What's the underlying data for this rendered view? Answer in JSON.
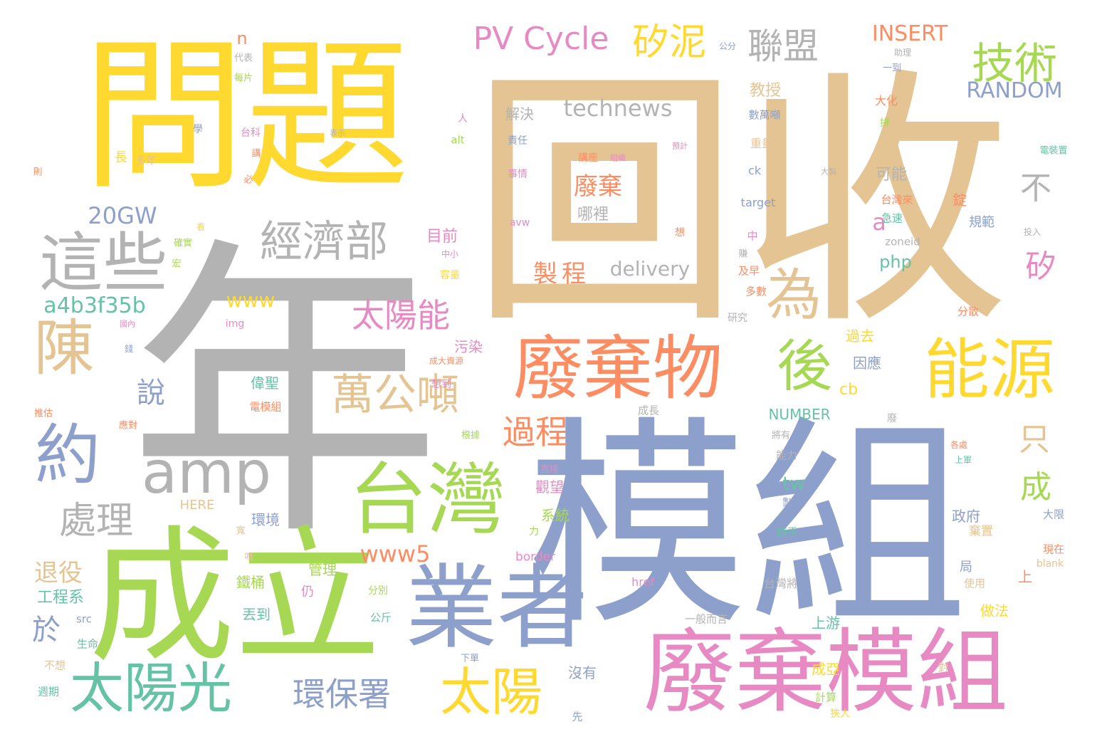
{
  "colors": {
    "tan": "#e5c494",
    "gray": "#b3b3b3",
    "blue": "#8da0cb",
    "green": "#a6d854",
    "yellow": "#ffd92f",
    "orange": "#fc8d62",
    "pink": "#e78ac3",
    "teal": "#66c2a5"
  },
  "words": [
    {
      "text": "回收",
      "color": "tan"
    },
    {
      "text": "年",
      "color": "gray"
    },
    {
      "text": "模組",
      "color": "blue"
    },
    {
      "text": "問題",
      "color": "yellow"
    },
    {
      "text": "成立",
      "color": "green"
    },
    {
      "text": "廢棄模組",
      "color": "pink"
    },
    {
      "text": "業者",
      "color": "blue"
    },
    {
      "text": "台灣",
      "color": "green"
    },
    {
      "text": "廢棄物",
      "color": "orange"
    },
    {
      "text": "能源",
      "color": "yellow"
    },
    {
      "text": "太陽光",
      "color": "teal"
    },
    {
      "text": "太陽",
      "color": "yellow"
    },
    {
      "text": "這些",
      "color": "gray"
    },
    {
      "text": "約",
      "color": "blue"
    },
    {
      "text": "陳",
      "color": "tan"
    },
    {
      "text": "amp",
      "color": "gray"
    },
    {
      "text": "經濟部",
      "color": "gray"
    },
    {
      "text": "萬公噸",
      "color": "tan"
    },
    {
      "text": "技術",
      "color": "green"
    },
    {
      "text": "後",
      "color": "green"
    },
    {
      "text": "為",
      "color": "tan"
    },
    {
      "text": "聯盟",
      "color": "gray"
    },
    {
      "text": "矽泥",
      "color": "yellow"
    },
    {
      "text": "PV Cycle",
      "color": "pink"
    },
    {
      "text": "太陽能",
      "color": "pink"
    },
    {
      "text": "處理",
      "color": "gray"
    },
    {
      "text": "環保署",
      "color": "blue"
    },
    {
      "text": "過程",
      "color": "orange"
    },
    {
      "text": "technews",
      "color": "gray"
    },
    {
      "text": "INSERT",
      "color": "orange"
    },
    {
      "text": "RANDOM",
      "color": "blue"
    },
    {
      "text": "20GW",
      "color": "blue"
    },
    {
      "text": "a4b3f35b",
      "color": "teal"
    },
    {
      "text": "www5",
      "color": "orange"
    },
    {
      "text": "說",
      "color": "blue"
    },
    {
      "text": "於",
      "color": "blue"
    },
    {
      "text": "退役",
      "color": "tan"
    },
    {
      "text": "製程",
      "color": "orange"
    },
    {
      "text": "delivery",
      "color": "gray"
    },
    {
      "text": "www",
      "color": "yellow"
    },
    {
      "text": "不",
      "color": "gray"
    },
    {
      "text": "a",
      "color": "pink"
    },
    {
      "text": "只",
      "color": "tan"
    },
    {
      "text": "成",
      "color": "green"
    },
    {
      "text": "矽",
      "color": "pink"
    },
    {
      "text": "廢棄",
      "color": "orange"
    },
    {
      "text": "哪裡",
      "color": "gray"
    },
    {
      "text": "解決",
      "color": "gray"
    },
    {
      "text": "php",
      "color": "teal"
    },
    {
      "text": "tw",
      "color": "teal"
    },
    {
      "text": "cb",
      "color": "yellow"
    },
    {
      "text": "可能",
      "color": "gray"
    },
    {
      "text": "教授",
      "color": "tan"
    },
    {
      "text": "目前",
      "color": "pink"
    },
    {
      "text": "污染",
      "color": "pink"
    },
    {
      "text": "偉聖",
      "color": "teal"
    },
    {
      "text": "觀望",
      "color": "pink"
    },
    {
      "text": "系統",
      "color": "green"
    },
    {
      "text": "環境",
      "color": "blue"
    },
    {
      "text": "管理",
      "color": "green"
    },
    {
      "text": "工程系",
      "color": "teal"
    },
    {
      "text": "鐵桶",
      "color": "green"
    },
    {
      "text": "丟到",
      "color": "teal"
    },
    {
      "text": "沒有",
      "color": "blue"
    },
    {
      "text": "成亞",
      "color": "yellow"
    },
    {
      "text": "上游",
      "color": "teal"
    },
    {
      "text": "政府",
      "color": "blue"
    },
    {
      "text": "因應",
      "color": "blue"
    },
    {
      "text": "過去",
      "color": "yellow"
    },
    {
      "text": "做法",
      "color": "yellow"
    },
    {
      "text": "NUMBER",
      "color": "teal"
    },
    {
      "text": "HERE",
      "color": "tan"
    },
    {
      "text": "border",
      "color": "pink"
    },
    {
      "text": "n",
      "color": "orange"
    },
    {
      "text": "長",
      "color": "yellow"
    },
    {
      "text": "多年",
      "color": "tan"
    },
    {
      "text": "規範",
      "color": "blue"
    },
    {
      "text": "錠",
      "color": "orange"
    },
    {
      "text": "台灣將",
      "color": "gray"
    },
    {
      "text": "棄置",
      "color": "tan"
    },
    {
      "text": "局",
      "color": "blue"
    },
    {
      "text": "使用",
      "color": "tan"
    },
    {
      "text": "電模組",
      "color": "orange"
    },
    {
      "text": "公斤",
      "color": "teal"
    },
    {
      "text": "先",
      "color": "blue"
    },
    {
      "text": "計算",
      "color": "green"
    },
    {
      "text": "週期",
      "color": "teal"
    },
    {
      "text": "生命",
      "color": "teal"
    },
    {
      "text": "不想",
      "color": "tan"
    },
    {
      "text": "src",
      "color": "blue"
    },
    {
      "text": "href",
      "color": "pink"
    },
    {
      "text": "img",
      "color": "pink"
    },
    {
      "text": "alt",
      "color": "green"
    },
    {
      "text": "target",
      "color": "blue"
    },
    {
      "text": "zoneid",
      "color": "gray"
    },
    {
      "text": "ck",
      "color": "blue"
    },
    {
      "text": "重量",
      "color": "tan"
    },
    {
      "text": "數萬噸",
      "color": "blue"
    },
    {
      "text": "大化",
      "color": "orange"
    },
    {
      "text": "台灣來",
      "color": "orange"
    },
    {
      "text": "急速",
      "color": "teal"
    },
    {
      "text": "一般而言",
      "color": "gray"
    },
    {
      "text": "能力",
      "color": "gray"
    },
    {
      "text": "成長",
      "color": "gray"
    },
    {
      "text": "研究",
      "color": "gray"
    },
    {
      "text": "多數",
      "color": "orange"
    },
    {
      "text": "及早",
      "color": "orange"
    },
    {
      "text": "分散",
      "color": "orange"
    },
    {
      "text": "現在",
      "color": "orange"
    },
    {
      "text": "大限",
      "color": "blue"
    },
    {
      "text": "容量",
      "color": "yellow"
    },
    {
      "text": "中小",
      "color": "pink"
    },
    {
      "text": "學",
      "color": "blue"
    },
    {
      "text": "台科",
      "color": "pink"
    },
    {
      "text": "講",
      "color": "orange"
    },
    {
      "text": "人",
      "color": "pink"
    },
    {
      "text": "拼",
      "color": "green"
    },
    {
      "text": "代表",
      "color": "gray"
    },
    {
      "text": "每片",
      "color": "green"
    },
    {
      "text": "一到",
      "color": "blue"
    },
    {
      "text": "助理",
      "color": "gray"
    },
    {
      "text": "公分",
      "color": "blue"
    },
    {
      "text": "責任",
      "color": "blue"
    },
    {
      "text": "事情",
      "color": "pink"
    },
    {
      "text": "講座",
      "color": "orange"
    },
    {
      "text": "組織",
      "color": "pink"
    },
    {
      "text": "預計",
      "color": "pink"
    },
    {
      "text": "想",
      "color": "orange"
    },
    {
      "text": "必",
      "color": "orange"
    },
    {
      "text": "則",
      "color": "orange"
    },
    {
      "text": "確實",
      "color": "green"
    },
    {
      "text": "宏",
      "color": "green"
    },
    {
      "text": "國內",
      "color": "pink"
    },
    {
      "text": "錢",
      "color": "blue"
    },
    {
      "text": "推估",
      "color": "orange"
    },
    {
      "text": "應對",
      "color": "orange"
    },
    {
      "text": "想到",
      "color": "pink"
    },
    {
      "text": "成大資源",
      "color": "orange"
    },
    {
      "text": "根據",
      "color": "green"
    },
    {
      "text": "直接",
      "color": "pink"
    },
    {
      "text": "將有",
      "color": "gray"
    },
    {
      "text": "力",
      "color": "green"
    },
    {
      "text": "上",
      "color": "orange"
    },
    {
      "text": "仍",
      "color": "pink"
    },
    {
      "text": "分別",
      "color": "green"
    },
    {
      "text": "下單",
      "color": "blue"
    },
    {
      "text": "對",
      "color": "tan"
    },
    {
      "text": "廢",
      "color": "gray"
    },
    {
      "text": "寬",
      "color": "tan"
    },
    {
      "text": "嗎",
      "color": "tan"
    },
    {
      "text": "avw",
      "color": "pink"
    },
    {
      "text": "中",
      "color": "pink"
    },
    {
      "text": "blank",
      "color": "tan"
    },
    {
      "text": "電裝置",
      "color": "teal"
    },
    {
      "text": "投入",
      "color": "gray"
    },
    {
      "text": "上軍",
      "color": "teal"
    },
    {
      "text": "各處",
      "color": "orange"
    },
    {
      "text": "製",
      "color": "blue"
    },
    {
      "text": "棘手",
      "color": "teal"
    },
    {
      "text": "賺",
      "color": "gray"
    },
    {
      "text": "表示",
      "color": "gray"
    },
    {
      "text": "看",
      "color": "yellow"
    },
    {
      "text": "大製",
      "color": "gray"
    },
    {
      "text": "狹人",
      "color": "yellow"
    }
  ]
}
